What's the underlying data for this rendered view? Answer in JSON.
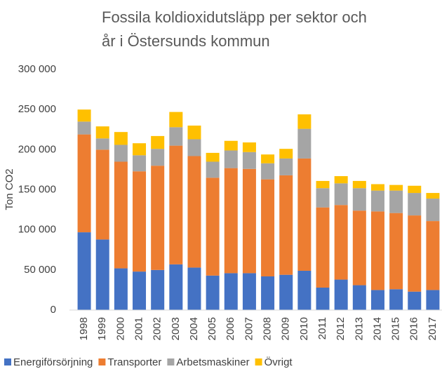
{
  "chart_data": {
    "type": "stacked_bar",
    "title": "Fossila koldioxidutsläpp per sektor och år i Östersunds kommun",
    "y_label": "Ton CO2",
    "categories": [
      "1998",
      "1999",
      "2000",
      "2001",
      "2002",
      "2003",
      "2004",
      "2005",
      "2006",
      "2007",
      "2008",
      "2009",
      "2010",
      "2011",
      "2012",
      "2013",
      "2014",
      "2015",
      "2016",
      "2017"
    ],
    "series": [
      {
        "name": "Energiförsörjning",
        "color": "#4472c4",
        "values": [
          97000,
          88000,
          52000,
          48000,
          50000,
          57000,
          53000,
          43000,
          46000,
          46000,
          42000,
          44000,
          49000,
          28000,
          38000,
          31000,
          25000,
          26000,
          23000,
          25000
        ]
      },
      {
        "name": "Transporter",
        "color": "#ed7d31",
        "values": [
          122000,
          112000,
          133000,
          125000,
          130000,
          148000,
          139000,
          122000,
          131000,
          130000,
          121000,
          124000,
          140000,
          100000,
          93000,
          93000,
          98000,
          95000,
          95000,
          86000
        ]
      },
      {
        "name": "Arbetsmaskiner",
        "color": "#a5a5a5",
        "values": [
          16000,
          14000,
          21000,
          20000,
          21000,
          23000,
          21000,
          20000,
          22000,
          21000,
          20000,
          21000,
          37000,
          24000,
          27000,
          28000,
          26000,
          28000,
          28000,
          28000
        ]
      },
      {
        "name": "Övrigt",
        "color": "#ffc000",
        "values": [
          15000,
          15000,
          16000,
          15000,
          16000,
          19000,
          17000,
          11000,
          12000,
          12000,
          11000,
          12000,
          18000,
          9000,
          9000,
          9000,
          8000,
          7000,
          9000,
          7000
        ]
      }
    ],
    "ylim": [
      0,
      300000
    ],
    "yticks": [
      0,
      {
        "value": 50000,
        "label": "50 000"
      },
      {
        "value": 100000,
        "label": "100 000"
      },
      {
        "value": 150000,
        "label": "150 000"
      },
      {
        "value": 200000,
        "label": "200 000"
      },
      {
        "value": 250000,
        "label": "250 000"
      },
      {
        "value": 300000,
        "label": "300 000"
      }
    ],
    "legend": "bottom",
    "grid": false
  }
}
